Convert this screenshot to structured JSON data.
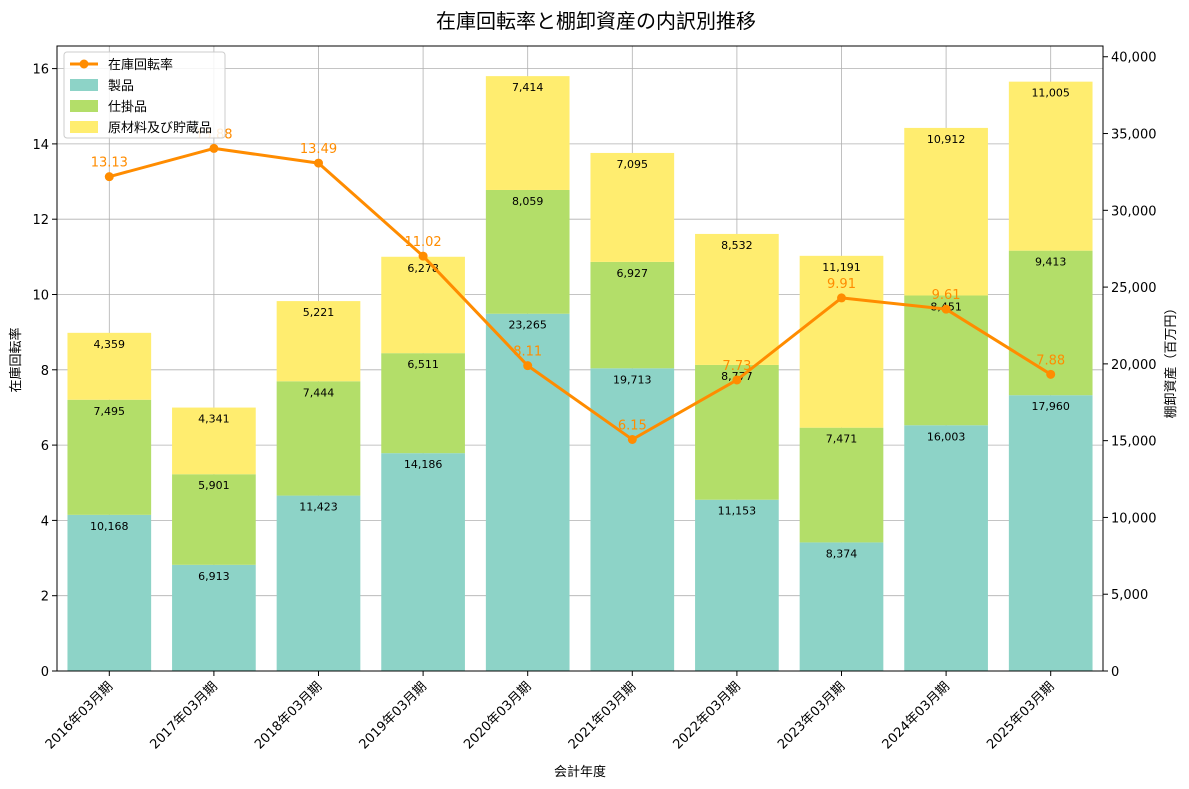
{
  "chart_data": {
    "type": "bar",
    "title": "在庫回転率と棚卸資産の内訳別推移",
    "xlabel": "会計年度",
    "ylabel_left": "在庫回転率",
    "ylabel_right": "棚卸資産（百万円）",
    "ylim_left": [
      0,
      16.6
    ],
    "ylim_right": [
      0,
      40700
    ],
    "yticks_left": [
      0,
      2,
      4,
      6,
      8,
      10,
      12,
      14,
      16
    ],
    "yticks_right": [
      0,
      5000,
      10000,
      15000,
      20000,
      25000,
      30000,
      35000,
      40000
    ],
    "grid": true,
    "legend_position": "top-left",
    "categories": [
      "2016年03月期",
      "2017年03月期",
      "2018年03月期",
      "2019年03月期",
      "2020年03月期",
      "2021年03月期",
      "2022年03月期",
      "2023年03月期",
      "2024年03月期",
      "2025年03月期"
    ],
    "series": [
      {
        "name": "製品",
        "kind": "stacked-bar",
        "axis": "right",
        "color": "#8dd3c7",
        "values": [
          10168,
          6913,
          11423,
          14186,
          23265,
          19713,
          11153,
          8374,
          16003,
          17960
        ]
      },
      {
        "name": "仕掛品",
        "kind": "stacked-bar",
        "axis": "right",
        "color": "#b3de69",
        "values": [
          7495,
          5901,
          7444,
          6511,
          8059,
          6927,
          8777,
          7471,
          8451,
          9413
        ]
      },
      {
        "name": "原材料及び貯蔵品",
        "kind": "stacked-bar",
        "axis": "right",
        "color": "#ffed6f",
        "values": [
          4359,
          4341,
          5221,
          6278,
          7414,
          7095,
          8532,
          11191,
          10912,
          11005
        ]
      },
      {
        "name": "在庫回転率",
        "kind": "line",
        "axis": "left",
        "color": "#ff8c00",
        "values": [
          13.13,
          13.88,
          13.49,
          11.02,
          8.11,
          6.15,
          7.73,
          9.91,
          9.61,
          7.88
        ]
      }
    ]
  }
}
